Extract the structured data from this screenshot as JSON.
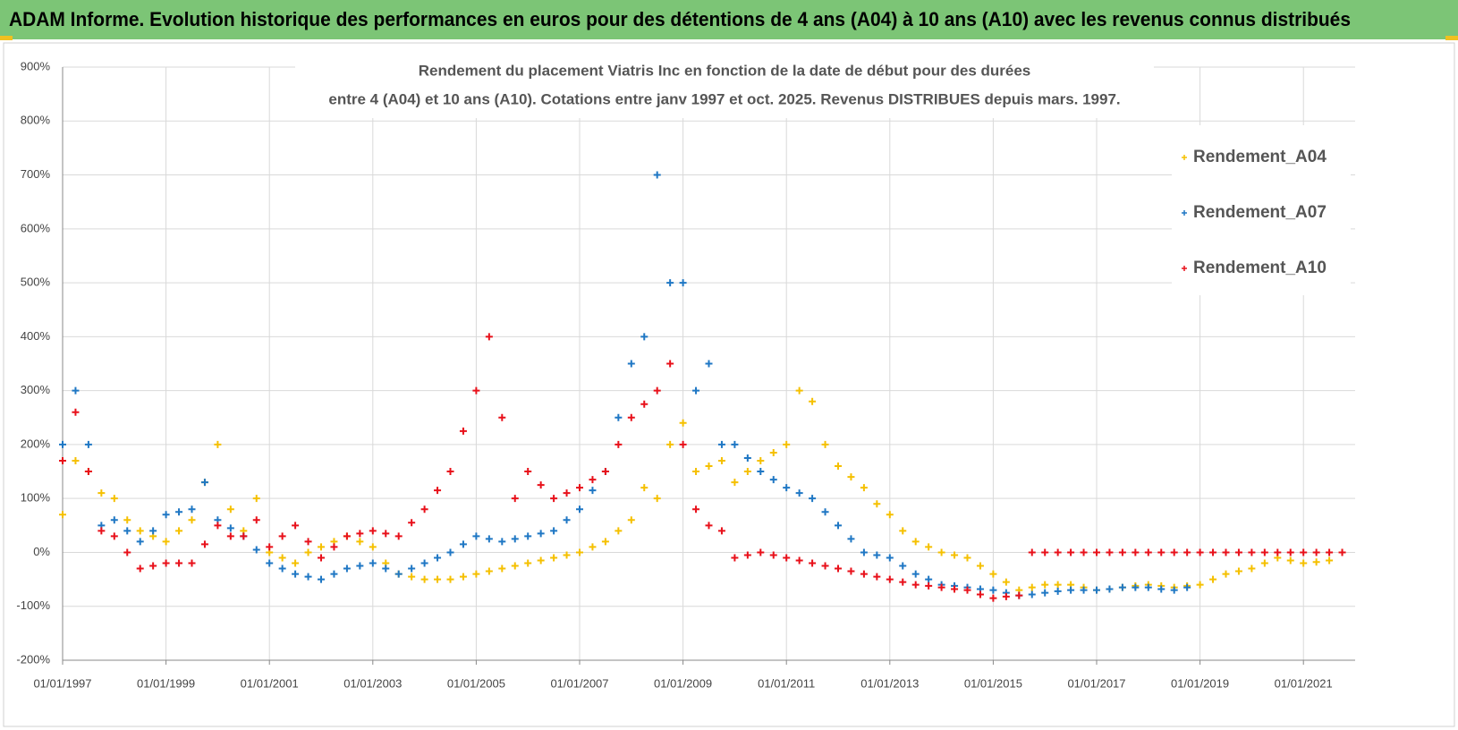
{
  "header": {
    "title": "ADAM Informe. Evolution historique des performances en euros pour des détentions de 4 ans (A04) à 10 ans (A10) avec les revenus connus distribués"
  },
  "chart_data": {
    "type": "scatter",
    "title": [
      "Rendement du placement Viatris Inc en fonction de la date de début pour des durées",
      "entre 4 (A04) et 10 ans (A10).  Cotations entre janv 1997 et oct. 2025.  Revenus DISTRIBUES depuis mars. 1997."
    ],
    "x": [
      "01/01/1997",
      "01/04/1997",
      "01/07/1997",
      "01/10/1997",
      "01/01/1998",
      "01/04/1998",
      "01/07/1998",
      "01/10/1998",
      "01/01/1999",
      "01/04/1999",
      "01/07/1999",
      "01/10/1999",
      "01/01/2000",
      "01/04/2000",
      "01/07/2000",
      "01/10/2000",
      "01/01/2001",
      "01/04/2001",
      "01/07/2001",
      "01/10/2001",
      "01/01/2002",
      "01/04/2002",
      "01/07/2002",
      "01/10/2002",
      "01/01/2003",
      "01/04/2003",
      "01/07/2003",
      "01/10/2003",
      "01/01/2004",
      "01/04/2004",
      "01/07/2004",
      "01/10/2004",
      "01/01/2005",
      "01/04/2005",
      "01/07/2005",
      "01/10/2005",
      "01/01/2006",
      "01/04/2006",
      "01/07/2006",
      "01/10/2006",
      "01/01/2007",
      "01/04/2007",
      "01/07/2007",
      "01/10/2007",
      "01/01/2008",
      "01/04/2008",
      "01/07/2008",
      "01/10/2008",
      "01/01/2009",
      "01/04/2009",
      "01/07/2009",
      "01/10/2009",
      "01/01/2010",
      "01/04/2010",
      "01/07/2010",
      "01/10/2010",
      "01/01/2011",
      "01/04/2011",
      "01/07/2011",
      "01/10/2011",
      "01/01/2012",
      "01/04/2012",
      "01/07/2012",
      "01/10/2012",
      "01/01/2013",
      "01/04/2013",
      "01/07/2013",
      "01/10/2013",
      "01/01/2014",
      "01/04/2014",
      "01/07/2014",
      "01/10/2014",
      "01/01/2015",
      "01/04/2015",
      "01/07/2015",
      "01/10/2015",
      "01/01/2016",
      "01/04/2016",
      "01/07/2016",
      "01/10/2016",
      "01/01/2017",
      "01/04/2017",
      "01/07/2017",
      "01/10/2017",
      "01/01/2018",
      "01/04/2018",
      "01/07/2018",
      "01/10/2018",
      "01/01/2019",
      "01/04/2019",
      "01/07/2019",
      "01/10/2019",
      "01/01/2020",
      "01/04/2020",
      "01/07/2020",
      "01/10/2020",
      "01/01/2021",
      "01/04/2021",
      "01/07/2021",
      "01/10/2021"
    ],
    "series": [
      {
        "name": "Rendement_A04",
        "color": "#f5c000",
        "values": [
          70,
          170,
          150,
          110,
          100,
          60,
          40,
          30,
          20,
          40,
          60,
          130,
          200,
          80,
          40,
          100,
          0,
          -10,
          -20,
          0,
          10,
          20,
          30,
          20,
          10,
          -20,
          -40,
          -45,
          -50,
          -50,
          -50,
          -45,
          -40,
          -35,
          -30,
          -25,
          -20,
          -15,
          -10,
          -5,
          0,
          10,
          20,
          40,
          60,
          120,
          100,
          200,
          240,
          150,
          160,
          170,
          130,
          150,
          170,
          185,
          200,
          300,
          280,
          200,
          160,
          140,
          120,
          90,
          70,
          40,
          20,
          10,
          0,
          -5,
          -10,
          -25,
          -40,
          -55,
          -70,
          -65,
          -60,
          -60,
          -60,
          -65,
          -70,
          -68,
          -65,
          -62,
          -60,
          -62,
          -65,
          -62,
          -60,
          -50,
          -40,
          -35,
          -30,
          -20,
          -10,
          -15,
          -20,
          -18,
          -15,
          0
        ]
      },
      {
        "name": "Rendement_A07",
        "color": "#1f77c4",
        "values": [
          200,
          300,
          200,
          50,
          60,
          40,
          20,
          40,
          70,
          75,
          80,
          130,
          60,
          45,
          30,
          5,
          -20,
          -30,
          -40,
          -45,
          -50,
          -40,
          -30,
          -25,
          -20,
          -30,
          -40,
          -30,
          -20,
          -10,
          0,
          15,
          30,
          25,
          20,
          25,
          30,
          35,
          40,
          60,
          80,
          115,
          150,
          250,
          350,
          400,
          700,
          500,
          500,
          300,
          350,
          200,
          200,
          175,
          150,
          135,
          120,
          110,
          100,
          75,
          50,
          25,
          0,
          -5,
          -10,
          -25,
          -40,
          -50,
          -60,
          -62,
          -65,
          -68,
          -70,
          -75,
          -80,
          -78,
          -75,
          -72,
          -70,
          -70,
          -70,
          -68,
          -65,
          -65,
          -65,
          -68,
          -70,
          -65,
          null,
          null,
          null,
          null,
          null,
          null,
          null,
          null,
          null,
          null,
          null,
          null
        ]
      },
      {
        "name": "Rendement_A10",
        "color": "#e8101a",
        "values": [
          170,
          260,
          150,
          40,
          30,
          0,
          -30,
          -25,
          -20,
          -20,
          -20,
          15,
          50,
          30,
          30,
          60,
          10,
          30,
          50,
          20,
          -10,
          10,
          30,
          35,
          40,
          35,
          30,
          55,
          80,
          115,
          150,
          225,
          300,
          400,
          250,
          100,
          150,
          125,
          100,
          110,
          120,
          135,
          150,
          200,
          250,
          275,
          300,
          350,
          200,
          80,
          50,
          40,
          -10,
          -5,
          0,
          -5,
          -10,
          -15,
          -20,
          -25,
          -30,
          -35,
          -40,
          -45,
          -50,
          -55,
          -60,
          -62,
          -65,
          -68,
          -70,
          -78,
          -85,
          -82,
          -80,
          0,
          0,
          0,
          0,
          0,
          0,
          0,
          0,
          0,
          0,
          0,
          0,
          0,
          0,
          0,
          0,
          0,
          0,
          0,
          0,
          0,
          0,
          0,
          0,
          0
        ]
      }
    ],
    "xlim": [
      "01/01/1997",
      "01/01/2022"
    ],
    "xticks": [
      "01/01/1997",
      "01/01/1999",
      "01/01/2001",
      "01/01/2003",
      "01/01/2005",
      "01/01/2007",
      "01/01/2009",
      "01/01/2011",
      "01/01/2013",
      "01/01/2015",
      "01/01/2017",
      "01/01/2019",
      "01/01/2021"
    ],
    "ylim": [
      -200,
      900
    ],
    "yticks": [
      {
        "value": -200,
        "label": "-200%"
      },
      {
        "value": -100,
        "label": "-100%"
      },
      {
        "value": 0,
        "label": "0%"
      },
      {
        "value": 100,
        "label": "100%"
      },
      {
        "value": 200,
        "label": "200%"
      },
      {
        "value": 300,
        "label": "300%"
      },
      {
        "value": 400,
        "label": "400%"
      },
      {
        "value": 500,
        "label": "500%"
      },
      {
        "value": 600,
        "label": "600%"
      },
      {
        "value": 700,
        "label": "700%"
      },
      {
        "value": 800,
        "label": "800%"
      },
      {
        "value": 900,
        "label": "900%"
      }
    ],
    "grid": true,
    "legend": "upper-right"
  }
}
